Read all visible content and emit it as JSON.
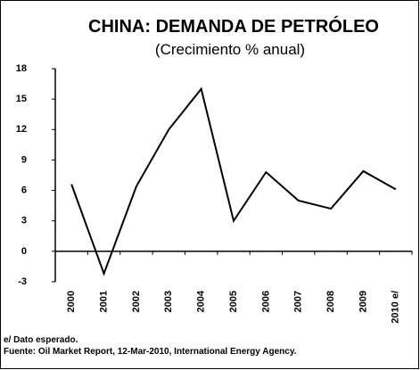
{
  "chart_data": {
    "type": "line",
    "title": "CHINA: DEMANDA  DE PETRÓLEO",
    "subtitle": "(Crecimiento % anual)",
    "categories": [
      "2000",
      "2001",
      "2002",
      "2003",
      "2004",
      "2005",
      "2006",
      "2007",
      "2008",
      "2009",
      "2010 e/"
    ],
    "values": [
      6.6,
      -2.2,
      6.4,
      12,
      16,
      3,
      7.8,
      5,
      4.2,
      7.9,
      6.1
    ],
    "color": "#000000",
    "ylim": [
      -3,
      18
    ],
    "yticks": [
      -3,
      0,
      3,
      6,
      9,
      12,
      15,
      18
    ],
    "notes": [
      "e/ Dato esperado.",
      "Fuente: Oil Market Report, 12-Mar-2010,  International Energy Agency."
    ]
  }
}
